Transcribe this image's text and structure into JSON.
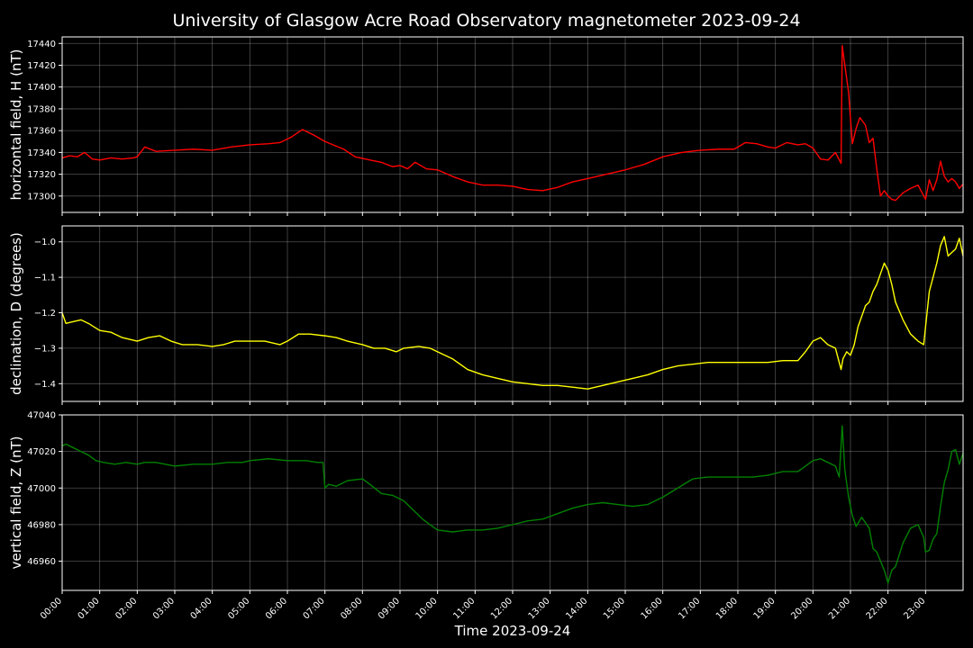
{
  "chart_data": {
    "type": "line",
    "title": "University of Glasgow Acre Road Observatory magnetometer 2023-09-24",
    "xlabel": "Time 2023-09-24",
    "xlim_hours": [
      0,
      24
    ],
    "x_tick_labels": [
      "00:00",
      "01:00",
      "02:00",
      "03:00",
      "04:00",
      "05:00",
      "06:00",
      "07:00",
      "08:00",
      "09:00",
      "10:00",
      "11:00",
      "12:00",
      "13:00",
      "14:00",
      "15:00",
      "16:00",
      "17:00",
      "18:00",
      "19:00",
      "20:00",
      "21:00",
      "22:00",
      "23:00"
    ],
    "grid": true,
    "panels": [
      {
        "name": "H",
        "ylabel": "horizontal field, H (nT)",
        "color": "#ff0000",
        "ylim": [
          17285,
          17446
        ],
        "yticks": [
          17300,
          17320,
          17340,
          17360,
          17380,
          17400,
          17420,
          17440
        ],
        "hours": [
          0,
          0.2,
          0.4,
          0.6,
          0.8,
          1.0,
          1.3,
          1.6,
          1.9,
          2.0,
          2.2,
          2.5,
          3.0,
          3.5,
          4.0,
          4.5,
          5.0,
          5.5,
          5.8,
          6.1,
          6.4,
          6.7,
          7.0,
          7.5,
          7.8,
          8.2,
          8.5,
          8.8,
          9.0,
          9.2,
          9.4,
          9.7,
          10.0,
          10.4,
          10.8,
          11.2,
          11.6,
          12.0,
          12.4,
          12.8,
          13.2,
          13.6,
          14.0,
          14.5,
          15.0,
          15.5,
          16.0,
          16.5,
          17.0,
          17.5,
          17.9,
          18.2,
          18.5,
          18.8,
          19.0,
          19.3,
          19.6,
          19.8,
          20.0,
          20.2,
          20.4,
          20.6,
          20.75,
          20.78,
          20.85,
          20.95,
          21.05,
          21.15,
          21.25,
          21.4,
          21.5,
          21.6,
          21.7,
          21.8,
          21.9,
          22.0,
          22.1,
          22.2,
          22.4,
          22.6,
          22.8,
          23.0,
          23.1,
          23.2,
          23.3,
          23.4,
          23.5,
          23.6,
          23.7,
          23.8,
          23.9,
          24.0
        ],
        "values": [
          17335,
          17337,
          17336,
          17340,
          17334,
          17333,
          17335,
          17334,
          17335,
          17336,
          17345,
          17341,
          17342,
          17343,
          17342,
          17345,
          17347,
          17348,
          17349,
          17354,
          17361,
          17356,
          17350,
          17343,
          17336,
          17333,
          17331,
          17327,
          17328,
          17325,
          17331,
          17325,
          17324,
          17318,
          17313,
          17310,
          17310,
          17309,
          17306,
          17305,
          17308,
          17313,
          17316,
          17320,
          17324,
          17329,
          17336,
          17340,
          17342,
          17343,
          17343,
          17349,
          17348,
          17345,
          17344,
          17349,
          17347,
          17348,
          17344,
          17334,
          17333,
          17340,
          17330,
          17438,
          17420,
          17395,
          17348,
          17362,
          17372,
          17365,
          17349,
          17353,
          17325,
          17300,
          17305,
          17300,
          17297,
          17296,
          17303,
          17307,
          17310,
          17297,
          17315,
          17305,
          17315,
          17332,
          17318,
          17313,
          17316,
          17313,
          17307,
          17311
        ]
      },
      {
        "name": "D",
        "ylabel": "declination, D (degrees)",
        "color": "#ffff00",
        "ylim": [
          -1.45,
          -0.955
        ],
        "yticks": [
          -1.4,
          -1.3,
          -1.2,
          -1.1,
          -1.0
        ],
        "ytick_labels": [
          "−1.4",
          "−1.3",
          "−1.2",
          "−1.1",
          "−1.0"
        ],
        "hours": [
          0,
          0.1,
          0.3,
          0.5,
          0.7,
          1.0,
          1.3,
          1.6,
          2.0,
          2.3,
          2.6,
          2.9,
          3.2,
          3.6,
          4.0,
          4.3,
          4.6,
          5.0,
          5.4,
          5.8,
          6.0,
          6.3,
          6.6,
          7.0,
          7.3,
          7.6,
          8.0,
          8.3,
          8.6,
          8.9,
          9.1,
          9.5,
          9.8,
          10.0,
          10.4,
          10.8,
          11.2,
          11.6,
          12.0,
          12.4,
          12.8,
          13.2,
          13.6,
          14.0,
          14.4,
          14.8,
          15.2,
          15.6,
          16.0,
          16.4,
          16.8,
          17.2,
          17.6,
          18.0,
          18.4,
          18.8,
          19.2,
          19.6,
          19.8,
          20.0,
          20.2,
          20.4,
          20.6,
          20.7,
          20.75,
          20.8,
          20.9,
          21.0,
          21.1,
          21.2,
          21.3,
          21.4,
          21.5,
          21.6,
          21.7,
          21.8,
          21.9,
          22.0,
          22.1,
          22.2,
          22.4,
          22.6,
          22.8,
          22.95,
          23.0,
          23.1,
          23.2,
          23.3,
          23.4,
          23.5,
          23.6,
          23.7,
          23.8,
          23.9,
          24.0
        ],
        "values": [
          -1.2,
          -1.23,
          -1.225,
          -1.22,
          -1.23,
          -1.25,
          -1.255,
          -1.27,
          -1.28,
          -1.27,
          -1.265,
          -1.28,
          -1.29,
          -1.29,
          -1.295,
          -1.29,
          -1.28,
          -1.28,
          -1.28,
          -1.29,
          -1.28,
          -1.26,
          -1.26,
          -1.265,
          -1.27,
          -1.28,
          -1.29,
          -1.3,
          -1.3,
          -1.31,
          -1.3,
          -1.295,
          -1.3,
          -1.31,
          -1.33,
          -1.36,
          -1.375,
          -1.385,
          -1.395,
          -1.4,
          -1.405,
          -1.405,
          -1.41,
          -1.415,
          -1.405,
          -1.395,
          -1.385,
          -1.375,
          -1.36,
          -1.35,
          -1.345,
          -1.34,
          -1.34,
          -1.34,
          -1.34,
          -1.34,
          -1.335,
          -1.335,
          -1.31,
          -1.28,
          -1.27,
          -1.29,
          -1.3,
          -1.34,
          -1.36,
          -1.33,
          -1.31,
          -1.32,
          -1.29,
          -1.24,
          -1.21,
          -1.18,
          -1.17,
          -1.14,
          -1.12,
          -1.09,
          -1.06,
          -1.08,
          -1.12,
          -1.17,
          -1.22,
          -1.26,
          -1.28,
          -1.29,
          -1.24,
          -1.14,
          -1.1,
          -1.06,
          -1.01,
          -0.985,
          -1.04,
          -1.03,
          -1.02,
          -0.99,
          -1.04
        ]
      },
      {
        "name": "Z",
        "ylabel": "vertical field, Z (nT)",
        "color": "#008000",
        "ylim": [
          46944,
          47040
        ],
        "yticks": [
          46960,
          46980,
          47000,
          47020,
          47040
        ],
        "hours": [
          0,
          0.1,
          0.3,
          0.5,
          0.7,
          0.9,
          1.1,
          1.4,
          1.7,
          2.0,
          2.2,
          2.5,
          3.0,
          3.5,
          4.0,
          4.4,
          4.8,
          5.0,
          5.5,
          6.0,
          6.5,
          6.8,
          6.95,
          7.0,
          7.1,
          7.3,
          7.6,
          8.0,
          8.2,
          8.5,
          8.8,
          9.1,
          9.4,
          9.6,
          9.8,
          10.0,
          10.4,
          10.8,
          11.2,
          11.6,
          12.0,
          12.4,
          12.8,
          13.2,
          13.6,
          14.0,
          14.4,
          14.8,
          15.2,
          15.6,
          16.0,
          16.4,
          16.8,
          17.2,
          17.6,
          18.0,
          18.4,
          18.8,
          19.2,
          19.6,
          19.8,
          20.0,
          20.2,
          20.4,
          20.6,
          20.7,
          20.78,
          20.85,
          20.95,
          21.05,
          21.15,
          21.3,
          21.5,
          21.6,
          21.7,
          21.8,
          21.9,
          22.0,
          22.1,
          22.2,
          22.4,
          22.6,
          22.8,
          22.95,
          23.0,
          23.1,
          23.2,
          23.3,
          23.4,
          23.5,
          23.6,
          23.7,
          23.8,
          23.9,
          24.0
        ],
        "values": [
          47023,
          47024,
          47022,
          47020,
          47018,
          47015,
          47014,
          47013,
          47014,
          47013,
          47014,
          47014,
          47012,
          47013,
          47013,
          47014,
          47014,
          47015,
          47016,
          47015,
          47015,
          47014,
          47014,
          47000,
          47002,
          47001,
          47004,
          47005,
          47002,
          46997,
          46996,
          46993,
          46987,
          46983,
          46980,
          46977,
          46976,
          46977,
          46977,
          46978,
          46980,
          46982,
          46983,
          46986,
          46989,
          46991,
          46992,
          46991,
          46990,
          46991,
          46995,
          47000,
          47005,
          47006,
          47006,
          47006,
          47006,
          47007,
          47009,
          47009,
          47012,
          47015,
          47016,
          47014,
          47012,
          47006,
          47034,
          47010,
          46995,
          46985,
          46979,
          46984,
          46978,
          46967,
          46965,
          46960,
          46955,
          46948,
          46955,
          46957,
          46970,
          46978,
          46980,
          46973,
          46965,
          46966,
          46972,
          46975,
          46990,
          47003,
          47010,
          47020,
          47021,
          47013,
          47019
        ]
      }
    ]
  }
}
